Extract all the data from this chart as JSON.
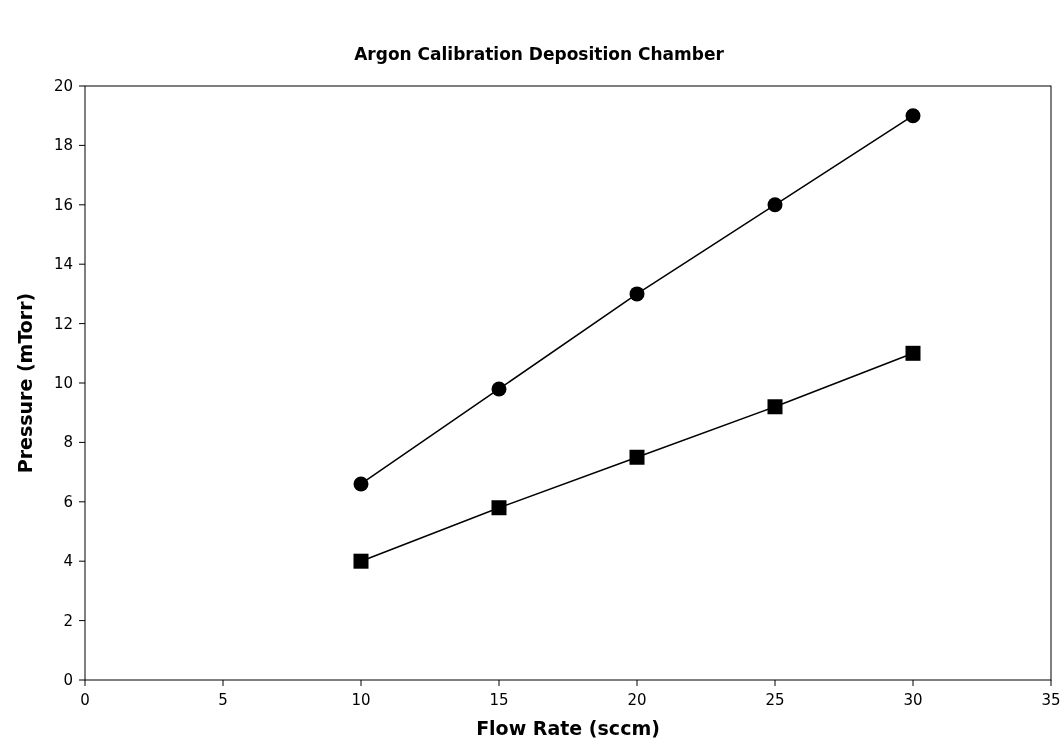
{
  "chart_data": {
    "type": "line",
    "title": "Argon Calibration Deposition Chamber",
    "xlabel": "Flow Rate (sccm)",
    "ylabel": "Pressure (mTorr)",
    "x": [
      10,
      15,
      20,
      25,
      30
    ],
    "series": [
      {
        "color": "#000000",
        "marker": "circle",
        "values": [
          6.6,
          9.8,
          13.0,
          16.0,
          19.0
        ]
      },
      {
        "color": "#000000",
        "marker": "square",
        "values": [
          4.0,
          5.8,
          7.5,
          9.2,
          11.0
        ]
      }
    ],
    "xlim": [
      0,
      35
    ],
    "xticks": [
      0,
      5,
      10,
      15,
      20,
      25,
      30,
      35
    ],
    "ylim": [
      0,
      20
    ],
    "yticks": [
      0,
      2,
      4,
      6,
      8,
      10,
      12,
      14,
      16,
      18,
      20
    ],
    "grid": false,
    "line_style": "solid"
  }
}
